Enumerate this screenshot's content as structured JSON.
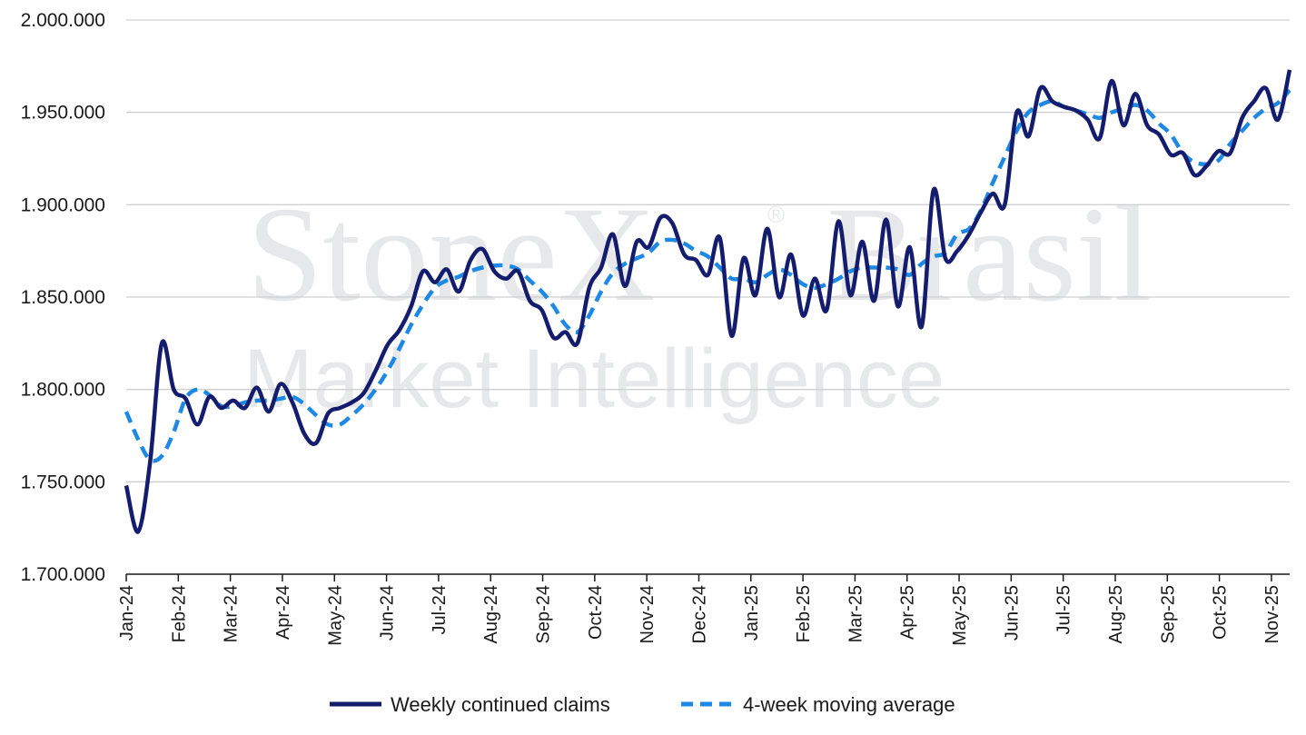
{
  "watermark": {
    "brand": "StoneX",
    "suffix": "Brasil",
    "reg": "®",
    "line2": "Market Intelligence"
  },
  "chart_data": {
    "type": "line",
    "title": "",
    "xlabel": "",
    "ylabel": "",
    "ylim": [
      1700000,
      2000000
    ],
    "yticks": [
      1700000,
      1750000,
      1800000,
      1850000,
      1900000,
      1950000,
      2000000
    ],
    "ytick_labels": [
      "1.700.000",
      "1.750.000",
      "1.800.000",
      "1.850.000",
      "1.900.000",
      "1.950.000",
      "2.000.000"
    ],
    "xtick_labels": [
      "Jan-24",
      "Feb-24",
      "Mar-24",
      "Apr-24",
      "May-24",
      "Jun-24",
      "Jul-24",
      "Aug-24",
      "Sep-24",
      "Oct-24",
      "Nov-24",
      "Dec-24",
      "Jan-25",
      "Feb-25",
      "Mar-25",
      "Apr-25",
      "May-25",
      "Jun-25",
      "Jul-25",
      "Aug-25",
      "Sep-25",
      "Oct-25",
      "Nov-25"
    ],
    "grid": "horizontal",
    "legend": "bottom-center",
    "colors": {
      "weekly": "#141c6e",
      "average": "#1e88e5",
      "grid": "#d0d0d0",
      "axis": "#1a1a1a"
    },
    "series": [
      {
        "name": "Weekly continued claims",
        "style": "solid",
        "values": [
          1748000,
          1723000,
          1760000,
          1825000,
          1800000,
          1795000,
          1781000,
          1796000,
          1790000,
          1794000,
          1790000,
          1801000,
          1788000,
          1803000,
          1793000,
          1776000,
          1771000,
          1787000,
          1790000,
          1793000,
          1798000,
          1810000,
          1824000,
          1832000,
          1845000,
          1864000,
          1858000,
          1865000,
          1853000,
          1870000,
          1876000,
          1864000,
          1860000,
          1864000,
          1848000,
          1843000,
          1828000,
          1831000,
          1825000,
          1855000,
          1866000,
          1884000,
          1856000,
          1880000,
          1877000,
          1893000,
          1890000,
          1873000,
          1870000,
          1862000,
          1882000,
          1829000,
          1871000,
          1851000,
          1887000,
          1850000,
          1873000,
          1840000,
          1860000,
          1843000,
          1891000,
          1851000,
          1880000,
          1848000,
          1892000,
          1845000,
          1877000,
          1834000,
          1908000,
          1871000,
          1875000,
          1884000,
          1896000,
          1906000,
          1900000,
          1950000,
          1937000,
          1963000,
          1956000,
          1953000,
          1951000,
          1946000,
          1936000,
          1967000,
          1943000,
          1960000,
          1943000,
          1938000,
          1927000,
          1928000,
          1916000,
          1921000,
          1929000,
          1928000,
          1947000,
          1956000,
          1963000,
          1946000,
          1973000
        ]
      },
      {
        "name": "4-week moving average",
        "style": "dashed",
        "values": [
          1788000,
          1773000,
          1762000,
          1764000,
          1777000,
          1795000,
          1800000,
          1797000,
          1791000,
          1791000,
          1793000,
          1794000,
          1794000,
          1795000,
          1796000,
          1792000,
          1786000,
          1781000,
          1781000,
          1786000,
          1792000,
          1800000,
          1810000,
          1822000,
          1835000,
          1846000,
          1855000,
          1859000,
          1861000,
          1864000,
          1866000,
          1867000,
          1867000,
          1865000,
          1859000,
          1853000,
          1845000,
          1835000,
          1831000,
          1840000,
          1853000,
          1863000,
          1868000,
          1871000,
          1874000,
          1880000,
          1881000,
          1879000,
          1875000,
          1872000,
          1866000,
          1860000,
          1860000,
          1858000,
          1862000,
          1865000,
          1862000,
          1857000,
          1855000,
          1857000,
          1860000,
          1864000,
          1866000,
          1866000,
          1866000,
          1865000,
          1862000,
          1868000,
          1872000,
          1874000,
          1884000,
          1887000,
          1897000,
          1912000,
          1926000,
          1940000,
          1950000,
          1954000,
          1956000,
          1953000,
          1951000,
          1949000,
          1947000,
          1950000,
          1952000,
          1954000,
          1951000,
          1944000,
          1938000,
          1928000,
          1923000,
          1922000,
          1924000,
          1933000,
          1940000,
          1947000,
          1952000,
          1955000,
          1962000
        ]
      }
    ]
  }
}
